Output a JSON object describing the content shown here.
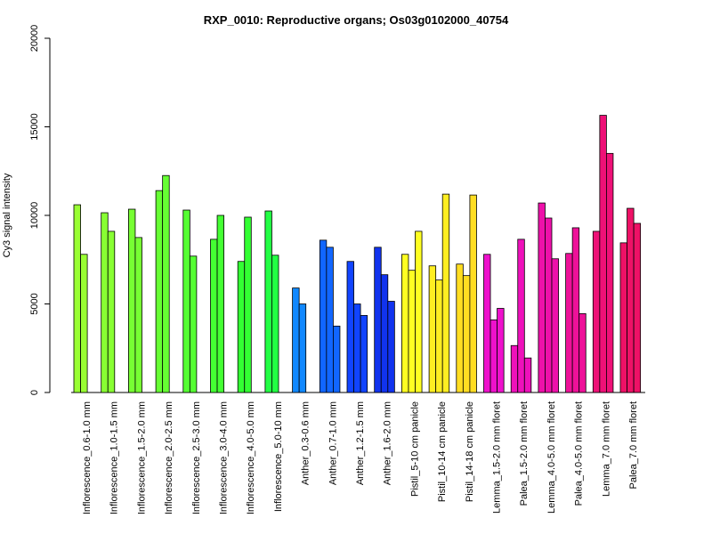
{
  "chart_data": {
    "type": "bar",
    "title": "RXP_0010: Reproductive organs; Os03g0102000_40754",
    "xlabel": "",
    "ylabel": "Cy3 signal intensity",
    "ylim": [
      0,
      20000
    ],
    "yticks": [
      "0",
      "5000",
      "10000",
      "15000",
      "20000"
    ],
    "grid": false,
    "categories": [
      "Inflorescence_0.6-1.0 mm",
      "Inflorescence_1.0-1.5 mm",
      "Inflorescence_1.5-2.0 mm",
      "Inflorescence_2.0-2.5 mm",
      "Inflorescence_2.5-3.0 mm",
      "Inflorescence_3.0-4.0 mm",
      "Inflorescence_4.0-5.0 mm",
      "Inflorescence_5.0-10 mm",
      "Anther_0.3-0.6 mm",
      "Anther_0.7-1.0 mm",
      "Anther_1.2-1.5 mm",
      "Anther_1.6-2.0 mm",
      "Pistil_5-10 cm panicle",
      "Pistil_10-14 cm panicle",
      "Pistil_14-18 cm panicle",
      "Lemma_1.5-2.0 mm floret",
      "Palea_1.5-2.0 mm floret",
      "Lemma_4.0-5.0 mm floret",
      "Palea_4.0-5.0 mm floret",
      "Lemma_7.0 mm floret",
      "Palea_7.0 mm floret"
    ],
    "groups": [
      {
        "color": "#99ff33",
        "values": [
          10600,
          7800
        ]
      },
      {
        "color": "#88ff33",
        "values": [
          10150,
          9100
        ]
      },
      {
        "color": "#77ff33",
        "values": [
          10350,
          8750
        ]
      },
      {
        "color": "#66ff33",
        "values": [
          11400,
          12250
        ]
      },
      {
        "color": "#55ff33",
        "values": [
          10300,
          7700
        ]
      },
      {
        "color": "#44ff33",
        "values": [
          8650,
          10000
        ]
      },
      {
        "color": "#33ff33",
        "values": [
          7400,
          9900
        ]
      },
      {
        "color": "#22ff44",
        "values": [
          10250,
          7750
        ]
      },
      {
        "color": "#1188ff",
        "values": [
          5900,
          5000
        ]
      },
      {
        "color": "#1166ff",
        "values": [
          8600,
          8200,
          3750
        ]
      },
      {
        "color": "#1144ff",
        "values": [
          7400,
          5000,
          4350
        ]
      },
      {
        "color": "#1133ee",
        "values": [
          8200,
          6650,
          5150
        ]
      },
      {
        "color": "#ffff22",
        "values": [
          7800,
          6900,
          9100
        ]
      },
      {
        "color": "#ffee22",
        "values": [
          7150,
          6350,
          11200
        ]
      },
      {
        "color": "#ffdd22",
        "values": [
          7250,
          6600,
          11150
        ]
      },
      {
        "color": "#ee11cc",
        "values": [
          7800,
          4100,
          4750
        ]
      },
      {
        "color": "#ee11bb",
        "values": [
          2650,
          8650,
          1950
        ]
      },
      {
        "color": "#ee11aa",
        "values": [
          10700,
          9850,
          7550
        ]
      },
      {
        "color": "#ee1199",
        "values": [
          7850,
          9300,
          4450
        ]
      },
      {
        "color": "#ee1177",
        "values": [
          9100,
          15650,
          13500
        ]
      },
      {
        "color": "#ee1166",
        "values": [
          8450,
          10400,
          9550
        ]
      }
    ]
  }
}
